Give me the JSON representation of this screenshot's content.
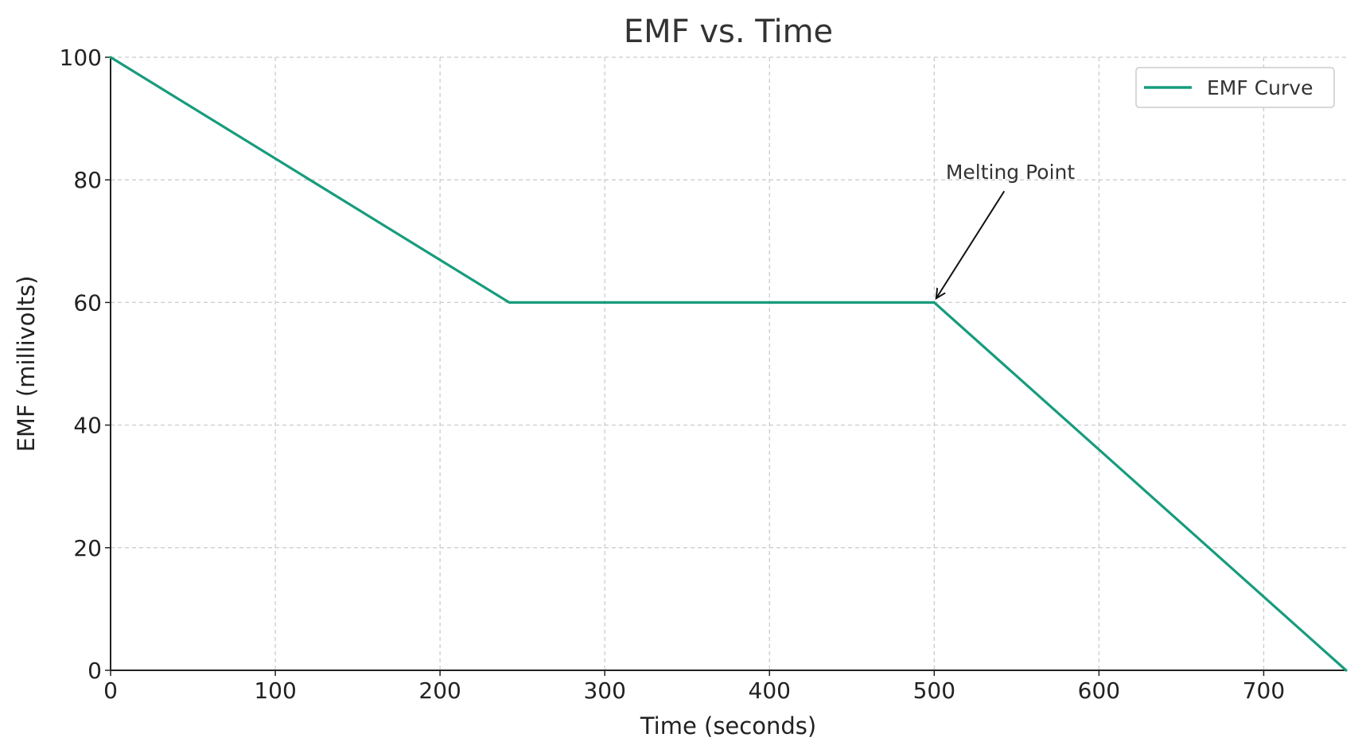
{
  "chart_data": {
    "type": "line",
    "title": "EMF vs. Time",
    "xlabel": "Time (seconds)",
    "ylabel": "EMF (millivolts)",
    "xlim": [
      0,
      750
    ],
    "ylim": [
      0,
      100
    ],
    "xticks": [
      0,
      100,
      200,
      300,
      400,
      500,
      600,
      700
    ],
    "yticks": [
      0,
      20,
      40,
      60,
      80,
      100
    ],
    "grid": true,
    "legend_position": "top-right",
    "series": [
      {
        "name": "EMF Curve",
        "color": "#179c7d",
        "x": [
          0,
          242,
          500,
          750
        ],
        "y": [
          100,
          60,
          60,
          0
        ]
      }
    ],
    "annotations": [
      {
        "text": "Melting Point",
        "point": [
          500,
          60
        ],
        "text_anchor_data": [
          507,
          80
        ]
      }
    ]
  }
}
